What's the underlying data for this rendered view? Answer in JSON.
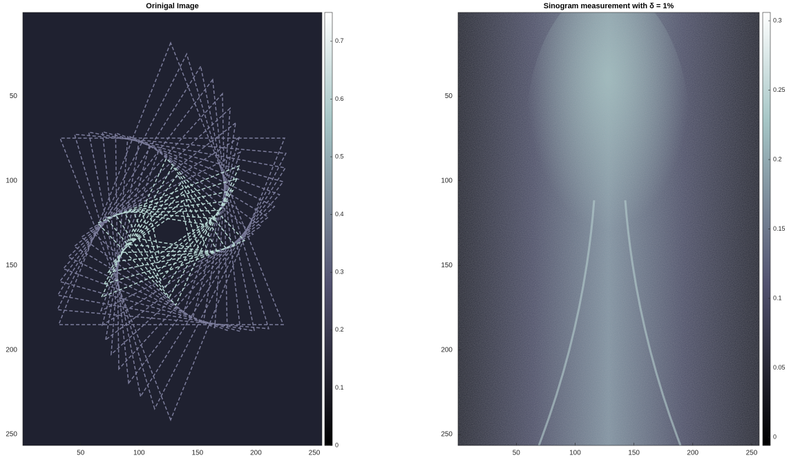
{
  "chart_data": [
    {
      "type": "image",
      "title": "Orinigal Image",
      "xlim": [
        0.5,
        256.5
      ],
      "ylim": [
        0.5,
        256.5
      ],
      "y_reversed": true,
      "xticks": [
        50,
        100,
        150,
        200,
        250
      ],
      "yticks": [
        50,
        100,
        150,
        200,
        250
      ],
      "colormap": "bone",
      "clim": [
        0,
        0.75
      ],
      "cticks": [
        0,
        0.1,
        0.2,
        0.3,
        0.4,
        0.5,
        0.6,
        0.7
      ]
    },
    {
      "type": "image",
      "title": "Sinogram measurement with δ = 1%",
      "xlim": [
        0.5,
        256.5
      ],
      "ylim": [
        0.5,
        256.5
      ],
      "y_reversed": true,
      "xticks": [
        50,
        100,
        150,
        200,
        250
      ],
      "yticks": [
        50,
        100,
        150,
        200,
        250
      ],
      "colormap": "bone",
      "clim": [
        -0.006,
        0.306
      ],
      "cticks": [
        0,
        0.05,
        0.1,
        0.15,
        0.2,
        0.25,
        0.3
      ]
    }
  ]
}
